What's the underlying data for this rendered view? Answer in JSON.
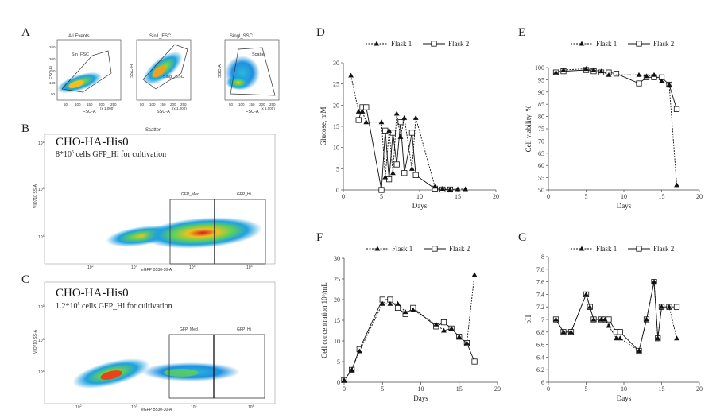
{
  "panels": {
    "A": {
      "label": "A",
      "plots": [
        {
          "title": "All Events",
          "gate": "Sin_FSC",
          "ylabel": "FSC-H",
          "xlabel": "FSC-A",
          "xticks": [
            "50",
            "100",
            "150",
            "200",
            "250"
          ],
          "yticks": [
            "50",
            "100",
            "150",
            "200",
            "250"
          ],
          "unit": "(x 1,000)"
        },
        {
          "title": "Sin1_FSC",
          "gate": "Singl_SSC",
          "ylabel": "SSC-H",
          "xlabel": "SSC-A",
          "xticks": [
            "50",
            "100",
            "150",
            "200",
            "250"
          ],
          "yticks": [
            "50",
            "100",
            "150",
            "200",
            "250"
          ],
          "unit": "(x 1,000)"
        },
        {
          "title": "Singl_SSC",
          "gate": "Scatter",
          "ylabel": "SSC-A",
          "xlabel": "FSC-A",
          "xticks": [
            "50",
            "100",
            "150",
            "200",
            "250"
          ],
          "yticks": [
            "50",
            "100",
            "150",
            "200",
            "250"
          ],
          "unit": "(x 1,000)"
        }
      ]
    },
    "B": {
      "label": "B",
      "title": "Scatter",
      "heading": "CHO-HA-His0",
      "subtitle_main": "8*10",
      "subtitle_exp": "5",
      "subtitle_rest": " cells GFP_Hi for cultivation",
      "gate_med": "GFP_Med",
      "gate_hi": "GFP_Hi",
      "xlabel": "eGFP B530-30-A",
      "ylabel": "VIO710 SS-A",
      "xticks": [
        "10",
        "10",
        "10",
        "10"
      ],
      "xticks_exp": [
        "2",
        "3",
        "4",
        "5"
      ],
      "yticks": [
        "10",
        "10",
        "10"
      ],
      "yticks_exp": [
        "4",
        "5",
        "6"
      ]
    },
    "C": {
      "label": "C",
      "heading": "CHO-HA-His0",
      "subtitle_main": "1.2*10",
      "subtitle_exp": "5",
      "subtitle_rest": " cells GFP_Hi for cultivation",
      "gate_med": "GFP_Med",
      "gate_hi": "GFP_Hi",
      "xlabel": "eGFP B530-30-A",
      "ylabel": "VIO710 SS-A",
      "xticks": [
        "10",
        "10",
        "10",
        "10"
      ],
      "xticks_exp": [
        "2",
        "3",
        "4",
        "5"
      ],
      "yticks": [
        "10",
        "10",
        "10"
      ],
      "yticks_exp": [
        "4",
        "5",
        "6"
      ]
    }
  },
  "chart_data": [
    {
      "id": "D",
      "label": "D",
      "type": "line",
      "xlabel": "Days",
      "ylabel": "Glucose, mM",
      "xlim": [
        0,
        20
      ],
      "ylim": [
        0,
        30
      ],
      "xticks": [
        0,
        5,
        10,
        15,
        20
      ],
      "yticks": [
        0,
        5,
        10,
        15,
        20,
        25,
        30
      ],
      "series": [
        {
          "name": "Flask 1",
          "marker": "triangle",
          "dash": true,
          "x": [
            1,
            2,
            2.5,
            3,
            5,
            5.5,
            6,
            6.5,
            7,
            7.5,
            8,
            9,
            9.5,
            12,
            13,
            14,
            15,
            16
          ],
          "y": [
            27,
            18.5,
            18.5,
            16,
            16,
            3,
            14,
            4,
            18,
            12.5,
            17,
            5,
            17,
            0.8,
            0.3,
            0.1,
            0.2,
            0.2
          ]
        },
        {
          "name": "Flask 2",
          "marker": "square",
          "dash": false,
          "x": [
            2,
            2.5,
            3,
            5,
            5.5,
            6,
            6.5,
            7,
            7.5,
            8,
            9,
            9.5,
            12,
            13,
            14
          ],
          "y": [
            16.5,
            19.5,
            19.5,
            0,
            14,
            2.5,
            13.5,
            6,
            16,
            4,
            13.5,
            3.5,
            0.3,
            0.1,
            0.1
          ]
        }
      ]
    },
    {
      "id": "E",
      "label": "E",
      "type": "line",
      "xlabel": "Days",
      "ylabel": "Cell viability, %",
      "xlim": [
        0,
        20
      ],
      "ylim": [
        50,
        100
      ],
      "xticks": [
        0,
        5,
        10,
        15,
        20
      ],
      "yticks": [
        50,
        55,
        60,
        65,
        70,
        75,
        80,
        85,
        90,
        95,
        100
      ],
      "series": [
        {
          "name": "Flask 1",
          "marker": "triangle",
          "dash": true,
          "x": [
            1,
            2,
            5,
            6,
            7,
            8,
            12,
            13,
            14,
            15,
            16,
            17
          ],
          "y": [
            98,
            99,
            99.5,
            99,
            98.5,
            97,
            97,
            96.5,
            97,
            94.5,
            93,
            52
          ]
        },
        {
          "name": "Flask 2",
          "marker": "square",
          "dash": false,
          "x": [
            1,
            2,
            5,
            6,
            7,
            8,
            9,
            12,
            13,
            14,
            15,
            16,
            17
          ],
          "y": [
            98,
            98.5,
            99,
            98.5,
            98,
            98,
            97.5,
            93.5,
            96,
            96,
            96,
            93,
            83
          ]
        }
      ]
    },
    {
      "id": "F",
      "label": "F",
      "type": "line",
      "xlabel": "Days",
      "ylabel": "Cell concentration 10⁶/mL",
      "xlim": [
        0,
        20
      ],
      "ylim": [
        0,
        30
      ],
      "xticks": [
        0,
        5,
        10,
        15,
        20
      ],
      "yticks": [
        0,
        5,
        10,
        15,
        20,
        25,
        30
      ],
      "series": [
        {
          "name": "Flask 1",
          "marker": "triangle",
          "dash": true,
          "x": [
            0,
            1,
            2,
            5,
            6,
            7,
            8,
            9,
            12,
            13,
            14,
            15,
            16,
            17
          ],
          "y": [
            0.5,
            3,
            7.5,
            19,
            19,
            19,
            17,
            17.5,
            14,
            12.5,
            13,
            11,
            9.5,
            26
          ]
        },
        {
          "name": "Flask 2",
          "marker": "square",
          "dash": false,
          "x": [
            0,
            1,
            2,
            5,
            6,
            7,
            8,
            9,
            12,
            13,
            14,
            15,
            16,
            17
          ],
          "y": [
            0.5,
            3,
            8,
            20,
            20,
            18,
            16.5,
            18,
            13.5,
            14.5,
            13,
            11,
            9.5,
            5
          ]
        }
      ]
    },
    {
      "id": "G",
      "label": "G",
      "type": "line",
      "xlabel": "Days",
      "ylabel": "pH",
      "xlim": [
        0,
        20
      ],
      "ylim": [
        6,
        8
      ],
      "xticks": [
        0,
        5,
        10,
        15,
        20
      ],
      "yticks": [
        6,
        6.2,
        6.4,
        6.6,
        6.8,
        7,
        7.2,
        7.4,
        7.6,
        7.8,
        8
      ],
      "ytick_labels": [
        "6",
        "6.2",
        "6.4",
        "6.6",
        "6.8",
        "7",
        "7.2",
        "7.4",
        "7.6",
        "7.8",
        "8"
      ],
      "series": [
        {
          "name": "Flask 1",
          "marker": "triangle",
          "dash": true,
          "x": [
            1,
            2,
            3,
            5,
            5.5,
            6,
            7,
            7.5,
            8,
            9,
            9.5,
            12,
            13,
            14,
            14.5,
            15,
            16,
            17
          ],
          "y": [
            7,
            6.8,
            6.8,
            7.4,
            7.2,
            7,
            7,
            7,
            6.9,
            6.7,
            6.7,
            6.5,
            7,
            7.6,
            6.7,
            7.2,
            7.2,
            6.7
          ]
        },
        {
          "name": "Flask 2",
          "marker": "square",
          "dash": false,
          "x": [
            1,
            2,
            3,
            5,
            5.5,
            6,
            7,
            7.5,
            8,
            9,
            9.5,
            12,
            13,
            14,
            14.5,
            15,
            16,
            17
          ],
          "y": [
            7,
            6.8,
            6.8,
            7.4,
            7.2,
            7,
            7,
            7,
            7,
            6.8,
            6.8,
            6.5,
            7,
            7.6,
            6.7,
            7.2,
            7.2,
            7.2
          ]
        }
      ]
    }
  ]
}
